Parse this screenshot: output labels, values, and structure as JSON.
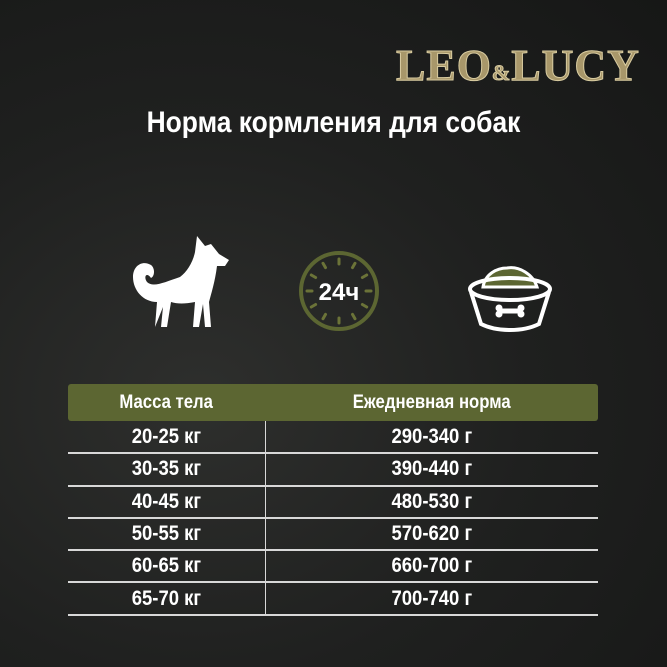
{
  "brand": {
    "logo_text_left": "LEO",
    "logo_amp": "&",
    "logo_text_right": "LUCY"
  },
  "title": "Норма кормления для собак",
  "icons": [
    {
      "name": "dog-icon"
    },
    {
      "name": "clock-24h-icon",
      "label": "24ч"
    },
    {
      "name": "food-bowl-icon"
    }
  ],
  "colors": {
    "accent": "#5c6632",
    "logo": "#a8976a",
    "text": "#ffffff"
  },
  "table": {
    "headers": [
      "Масса тела",
      "Ежедневная норма"
    ],
    "rows": [
      [
        "20-25 кг",
        "290-340 г"
      ],
      [
        "30-35 кг",
        "390-440 г"
      ],
      [
        "40-45 кг",
        "480-530 г"
      ],
      [
        "50-55 кг",
        "570-620 г"
      ],
      [
        "60-65 кг",
        "660-700 г"
      ],
      [
        "65-70 кг",
        "700-740 г"
      ]
    ]
  }
}
